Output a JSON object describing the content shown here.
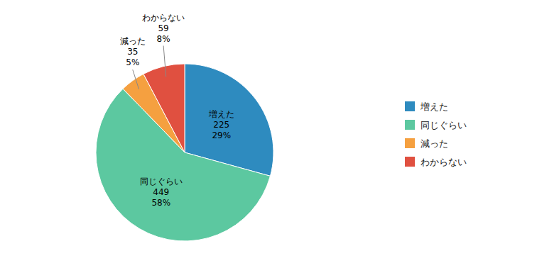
{
  "chart_data": {
    "type": "pie",
    "categories": [
      "増えた",
      "同じぐらい",
      "減った",
      "わからない"
    ],
    "values": [
      225,
      449,
      35,
      59
    ],
    "percentages": [
      {
        "value": 29,
        "label": "29%"
      },
      {
        "value": 58,
        "label": "58%"
      },
      {
        "value": 5,
        "label": "5%"
      },
      {
        "value": 8,
        "label": "8%"
      }
    ],
    "colors": [
      "#2E8BBF",
      "#5CC8A0",
      "#F5A040",
      "#E05040"
    ],
    "data_labels": true,
    "legend": "right"
  }
}
